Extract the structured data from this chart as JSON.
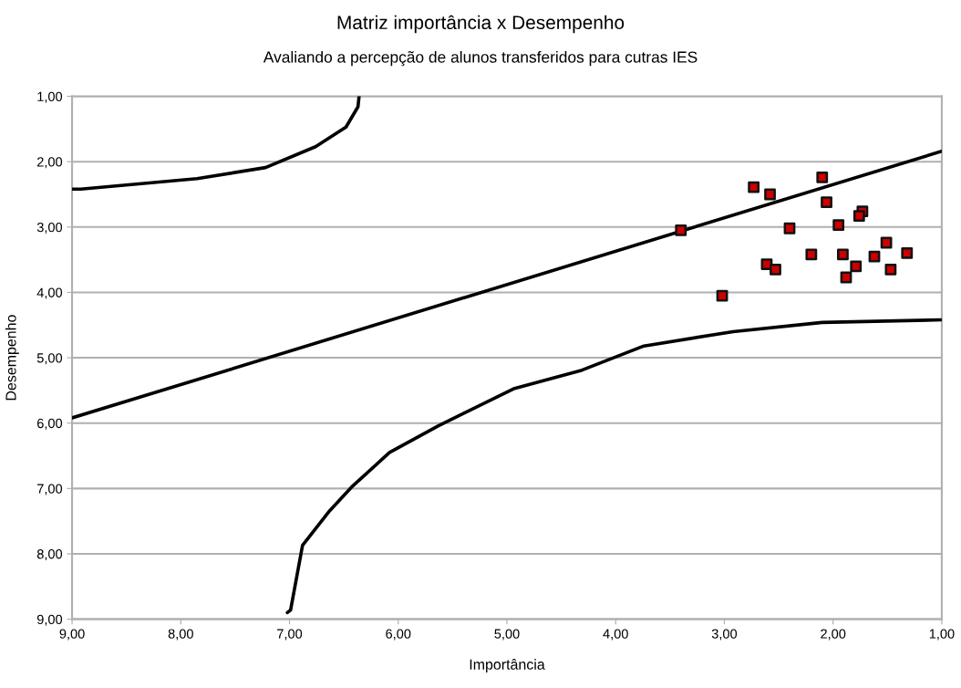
{
  "chart_data": {
    "type": "scatter",
    "title": "Matriz importância x Desempenho",
    "subtitle": "Avaliando a percepção de alunos transferidos para cutras IES",
    "xlabel": "Importância",
    "ylabel": "Desempenho",
    "xlim": [
      9,
      1
    ],
    "ylim": [
      9,
      1
    ],
    "xticks": [
      {
        "value": 9,
        "label": "9,00"
      },
      {
        "value": 8,
        "label": "8,00"
      },
      {
        "value": 7,
        "label": "7,00"
      },
      {
        "value": 6,
        "label": "6,00"
      },
      {
        "value": 5,
        "label": "5,00"
      },
      {
        "value": 4,
        "label": "4,00"
      },
      {
        "value": 3,
        "label": "3,00"
      },
      {
        "value": 2,
        "label": "2,00"
      },
      {
        "value": 1,
        "label": "1,00"
      }
    ],
    "yticks": [
      {
        "value": 1,
        "label": "1,00"
      },
      {
        "value": 2,
        "label": "2,00"
      },
      {
        "value": 3,
        "label": "3,00"
      },
      {
        "value": 4,
        "label": "4,00"
      },
      {
        "value": 5,
        "label": "5,00"
      },
      {
        "value": 6,
        "label": "6,00"
      },
      {
        "value": 7,
        "label": "7,00"
      },
      {
        "value": 8,
        "label": "8,00"
      },
      {
        "value": 9,
        "label": "9,00"
      }
    ],
    "grid": "y",
    "series": [
      {
        "type": "line",
        "marker": "none",
        "color": "#000000",
        "x": [
          9,
          1
        ],
        "values": [
          5.92,
          1.84
        ]
      },
      {
        "type": "line",
        "marker": "none",
        "color": "#000000",
        "x": [
          9,
          8.92,
          7.85,
          7.22,
          6.76,
          6.48,
          6.37,
          6.36
        ],
        "values": [
          2.42,
          2.42,
          2.26,
          2.09,
          1.77,
          1.47,
          1.16,
          1.0
        ]
      },
      {
        "type": "line",
        "marker": "none",
        "color": "#000000",
        "x": [
          7.02,
          6.99,
          6.88,
          6.63,
          6.43,
          6.08,
          5.63,
          4.93,
          4.31,
          3.74,
          2.92,
          2.1,
          1
        ],
        "values": [
          8.9,
          8.86,
          7.87,
          7.34,
          6.98,
          6.45,
          6.04,
          5.47,
          5.19,
          4.82,
          4.6,
          4.46,
          4.42
        ]
      },
      {
        "marker": "square",
        "color": "#cc0000",
        "x": [
          2.73,
          2.58,
          2.1,
          2.06,
          1.73,
          1.76,
          1.95,
          3.4,
          2.4,
          1.51,
          1.32,
          2.2,
          1.91,
          1.62,
          2.61,
          2.53,
          1.79,
          1.47,
          1.88,
          3.02
        ],
        "values": [
          2.39,
          2.5,
          2.24,
          2.62,
          2.76,
          2.83,
          2.97,
          3.05,
          3.02,
          3.24,
          3.4,
          3.42,
          3.42,
          3.45,
          3.57,
          3.65,
          3.6,
          3.65,
          3.77,
          4.05
        ]
      }
    ]
  }
}
